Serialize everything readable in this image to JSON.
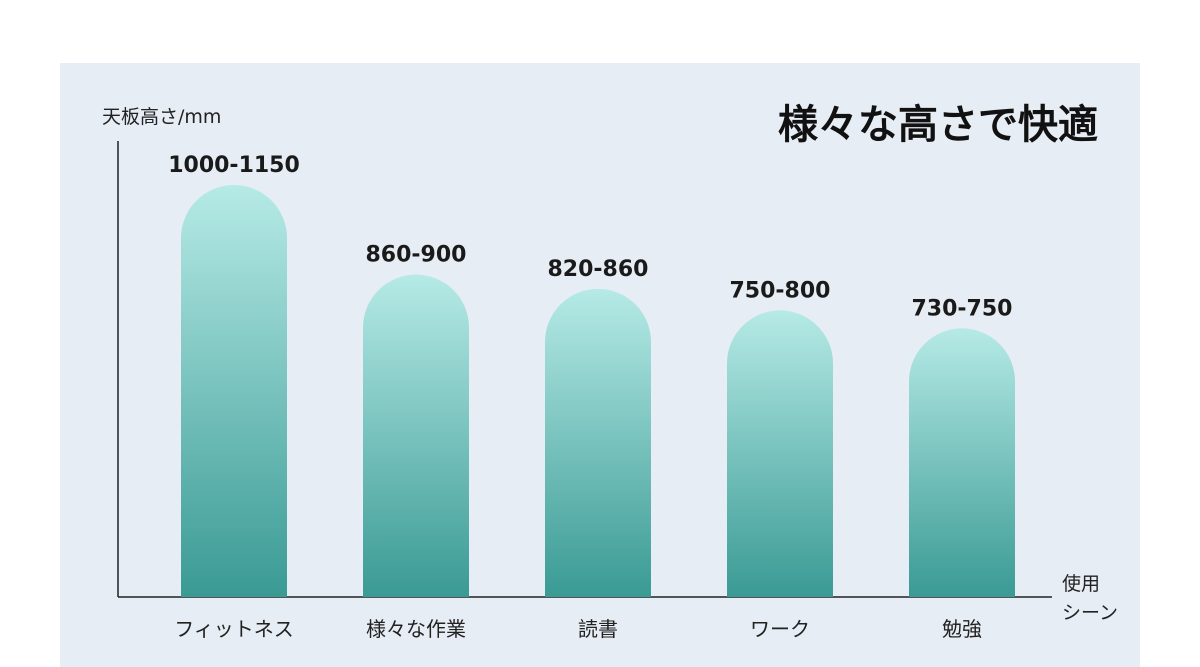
{
  "chart_data": {
    "type": "bar",
    "title": "様々な高さで快適",
    "ylabel": "天板高さ/mm",
    "xlabel": [
      "使用",
      "シーン"
    ],
    "categories": [
      "フィットネス",
      "様々な作業",
      "読書",
      "ワーク",
      "勉強"
    ],
    "values": [
      1150,
      900,
      860,
      800,
      750
    ],
    "value_labels": [
      "1000-1150",
      "860-900",
      "820-860",
      "750-800",
      "730-750"
    ],
    "ylim": [
      0,
      1150
    ],
    "grid": false,
    "colors": {
      "bar_top": "#b6eae6",
      "bar_bottom": "#3a9a94",
      "axis": "#222222"
    }
  }
}
